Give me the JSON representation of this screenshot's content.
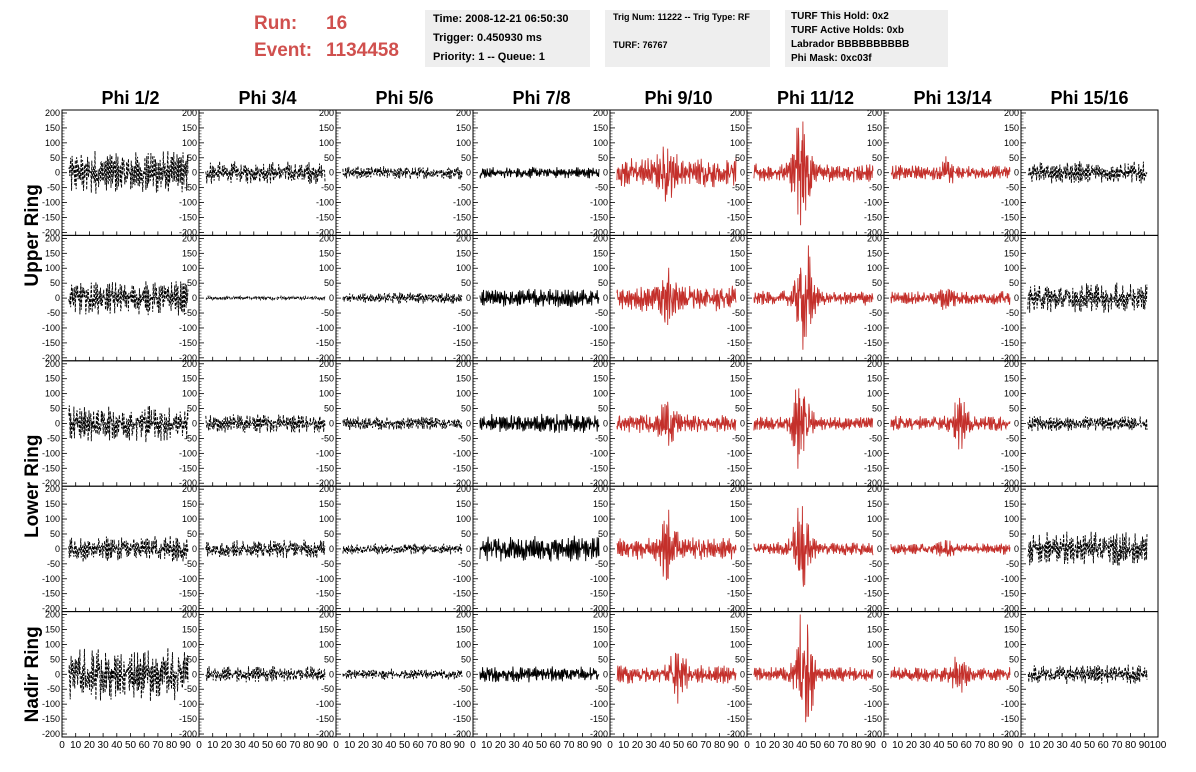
{
  "header": {
    "run_label": "Run:",
    "run_value": "16",
    "event_label": "Event:",
    "event_value": "1134458",
    "accent_color": "#d0504e"
  },
  "info_boxes": {
    "time": "Time: 2008-12-21 06:50:30",
    "trigger": "Trigger: 0.450930 ms",
    "priority": "Priority: 1 -- Queue: 1",
    "trig_num": "Trig Num: 11222 -- Trig Type: RF",
    "turf": "TURF: 76767",
    "turf_hold": "TURF This Hold: 0x2",
    "turf_active": "TURF Active Holds: 0xb",
    "labrador": "Labrador BBBBBBBBBB",
    "phi_mask": "Phi Mask: 0xc03f"
  },
  "chart_data": {
    "type": "line",
    "description_of_axes": "8 x 5 grid of waveform panels",
    "column_titles": [
      "Phi 1/2",
      "Phi 3/4",
      "Phi 5/6",
      "Phi 7/8",
      "Phi 9/10",
      "Phi 11/12",
      "Phi 13/14",
      "Phi 15/16"
    ],
    "row_titles": [
      "Upper Ring",
      "Lower Ring",
      "Nadir Ring"
    ],
    "xlim": [
      0,
      100
    ],
    "x_ticks": [
      0,
      10,
      20,
      30,
      40,
      50,
      60,
      70,
      80,
      90,
      100
    ],
    "ylim": [
      -210,
      210
    ],
    "y_ticks": [
      200,
      150,
      100,
      50,
      0,
      -50,
      -100,
      -150,
      -200
    ],
    "masked_phi_color": "#c4302b",
    "normal_color": "#000000",
    "row_groups": [
      {
        "title": "Upper Ring",
        "rows": [
          0,
          1
        ]
      },
      {
        "title": "Lower Ring",
        "rows": [
          2,
          3
        ]
      },
      {
        "title": "Nadir Ring",
        "rows": [
          4
        ]
      }
    ],
    "panels": [
      [
        {
          "amp": 60,
          "style": "dash"
        },
        {
          "amp": 30,
          "style": "dash"
        },
        {
          "amp": 18,
          "style": "dash"
        },
        {
          "amp": 15,
          "style": "solid"
        },
        {
          "amp": 40,
          "burst": true,
          "peak": 85,
          "center": 42,
          "style": "red"
        },
        {
          "amp": 25,
          "burst": true,
          "peak": 210,
          "center": 40,
          "style": "red"
        },
        {
          "amp": 20,
          "burst": true,
          "peak": 45,
          "center": 45,
          "style": "red"
        },
        {
          "amp": 30,
          "style": "dash"
        }
      ],
      [
        {
          "amp": 45,
          "style": "dash"
        },
        {
          "amp": 5,
          "style": "dash"
        },
        {
          "amp": 15,
          "style": "dash"
        },
        {
          "amp": 25,
          "style": "solid"
        },
        {
          "amp": 35,
          "burst": true,
          "peak": 90,
          "center": 42,
          "style": "red"
        },
        {
          "amp": 20,
          "burst": true,
          "peak": 170,
          "center": 42,
          "style": "red"
        },
        {
          "amp": 18,
          "burst": true,
          "peak": 40,
          "center": 45,
          "style": "red"
        },
        {
          "amp": 40,
          "style": "dash"
        }
      ],
      [
        {
          "amp": 50,
          "style": "dash"
        },
        {
          "amp": 25,
          "style": "dash"
        },
        {
          "amp": 18,
          "style": "dash"
        },
        {
          "amp": 25,
          "style": "solid"
        },
        {
          "amp": 25,
          "burst": true,
          "peak": 70,
          "center": 42,
          "style": "red"
        },
        {
          "amp": 18,
          "burst": true,
          "peak": 150,
          "center": 40,
          "style": "red"
        },
        {
          "amp": 20,
          "burst": true,
          "peak": 75,
          "center": 55,
          "style": "red"
        },
        {
          "amp": 20,
          "style": "dash"
        }
      ],
      [
        {
          "amp": 35,
          "style": "dash"
        },
        {
          "amp": 25,
          "style": "dash"
        },
        {
          "amp": 15,
          "style": "dash"
        },
        {
          "amp": 35,
          "style": "solid"
        },
        {
          "amp": 30,
          "burst": true,
          "peak": 110,
          "center": 42,
          "style": "red"
        },
        {
          "amp": 18,
          "burst": true,
          "peak": 140,
          "center": 40,
          "style": "red"
        },
        {
          "amp": 15,
          "burst": true,
          "peak": 30,
          "center": 45,
          "style": "red"
        },
        {
          "amp": 45,
          "style": "dash"
        }
      ],
      [
        {
          "amp": 70,
          "style": "dash"
        },
        {
          "amp": 22,
          "style": "dash"
        },
        {
          "amp": 15,
          "style": "dash"
        },
        {
          "amp": 22,
          "style": "solid"
        },
        {
          "amp": 25,
          "burst": true,
          "peak": 80,
          "center": 50,
          "style": "red"
        },
        {
          "amp": 20,
          "burst": true,
          "peak": 200,
          "center": 42,
          "style": "red"
        },
        {
          "amp": 20,
          "burst": true,
          "peak": 55,
          "center": 55,
          "style": "red"
        },
        {
          "amp": 25,
          "style": "dash"
        }
      ]
    ]
  }
}
